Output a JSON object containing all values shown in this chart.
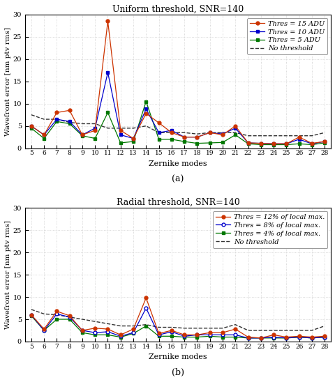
{
  "x": [
    5,
    6,
    7,
    8,
    9,
    10,
    11,
    12,
    13,
    14,
    15,
    16,
    17,
    18,
    19,
    20,
    21,
    22,
    23,
    24,
    25,
    26,
    27,
    28
  ],
  "top_red": [
    5.0,
    3.0,
    8.0,
    8.5,
    3.0,
    4.0,
    28.5,
    4.0,
    2.2,
    7.8,
    5.7,
    3.5,
    2.5,
    2.5,
    3.5,
    3.0,
    5.0,
    1.2,
    1.1,
    1.0,
    1.0,
    2.5,
    1.1,
    1.5
  ],
  "top_blue": [
    5.0,
    3.0,
    6.5,
    6.0,
    3.0,
    4.5,
    17.0,
    3.0,
    2.2,
    8.8,
    3.5,
    4.0,
    2.5,
    2.5,
    3.5,
    3.2,
    4.5,
    1.2,
    1.1,
    1.0,
    1.0,
    2.0,
    1.0,
    1.5
  ],
  "top_green": [
    4.5,
    2.2,
    6.0,
    5.5,
    2.8,
    2.2,
    8.0,
    1.2,
    1.5,
    10.5,
    2.0,
    2.0,
    1.5,
    1.1,
    1.2,
    1.3,
    3.0,
    1.0,
    0.8,
    0.8,
    0.8,
    1.0,
    0.8,
    1.2
  ],
  "top_dash": [
    7.5,
    6.5,
    6.5,
    5.8,
    5.5,
    5.5,
    4.5,
    4.5,
    4.5,
    5.0,
    3.5,
    3.5,
    3.5,
    3.2,
    3.5,
    3.5,
    3.5,
    2.8,
    2.8,
    2.8,
    2.8,
    2.8,
    2.8,
    3.5
  ],
  "bot_red": [
    6.0,
    2.8,
    6.8,
    5.8,
    2.5,
    3.0,
    2.8,
    1.5,
    2.8,
    9.8,
    1.8,
    2.5,
    1.5,
    1.5,
    2.0,
    2.0,
    2.8,
    1.0,
    0.8,
    1.5,
    1.0,
    1.2,
    1.0,
    1.2
  ],
  "bot_blue": [
    6.0,
    2.5,
    6.2,
    5.5,
    2.5,
    2.0,
    2.2,
    1.2,
    2.0,
    7.5,
    1.5,
    2.2,
    1.2,
    1.5,
    1.5,
    1.5,
    1.5,
    0.8,
    0.8,
    1.0,
    0.8,
    1.0,
    0.8,
    1.0
  ],
  "bot_green": [
    5.8,
    2.5,
    5.0,
    5.0,
    2.0,
    1.5,
    1.5,
    1.0,
    1.8,
    3.5,
    1.2,
    1.2,
    1.0,
    1.0,
    1.2,
    1.0,
    1.0,
    0.8,
    0.8,
    0.8,
    0.8,
    1.0,
    0.8,
    1.0
  ],
  "bot_dash": [
    7.2,
    6.2,
    6.0,
    5.5,
    5.0,
    4.5,
    4.0,
    3.5,
    3.5,
    3.8,
    3.2,
    3.2,
    3.0,
    3.0,
    3.0,
    3.0,
    3.8,
    2.5,
    2.5,
    2.5,
    2.5,
    2.5,
    2.5,
    3.5
  ],
  "title_top": "Uniform threshold, SNR=140",
  "title_bot": "Radial threshold, SNR=140",
  "ylabel": "Wavefront error [nm ptv rms]",
  "xlabel": "Zernike modes",
  "label_a": "(a)",
  "label_b": "(b)",
  "legend_top": [
    "Thres = 15 ADU",
    "Thres = 10 ADU",
    "Thres = 5 ADU",
    "No threshold"
  ],
  "legend_bot": [
    "Thres = 12% of local max.",
    "Thres = 8% of local max.",
    "Thres = 4% of local max.",
    "No threshold"
  ],
  "ylim": [
    0,
    30
  ],
  "yticks": [
    0,
    5,
    10,
    15,
    20,
    25,
    30
  ],
  "color_red": "#cc3300",
  "color_blue": "#0000cc",
  "color_green": "#007700",
  "color_dash": "#333333",
  "bg_color": "#ffffff",
  "grid_color": "#cccccc"
}
